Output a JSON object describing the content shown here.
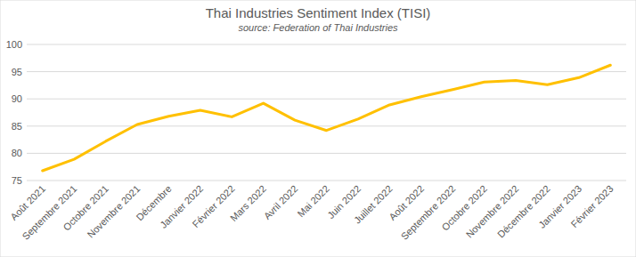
{
  "chart_data": {
    "type": "line",
    "title": "Thai Industries Sentiment Index (TISI)",
    "subtitle": "source: Federation of Thai Industries",
    "categories": [
      "Août 2021",
      "Septembre 2021",
      "Octobre 2021",
      "Novembre 2021",
      "Décembre",
      "Janvier 2022",
      "Février 2022",
      "Mars 2022",
      "Avril 2022",
      "Mai 2022",
      "Juin 2022",
      "Juillet 2022",
      "Août 2022",
      "Septembre 2022",
      "Octobre 2022",
      "Novembre 2022",
      "Décembre 2022",
      "Janvier 2023",
      "Février 2023"
    ],
    "values": [
      76.8,
      78.9,
      82.2,
      85.3,
      86.8,
      87.9,
      86.7,
      89.2,
      86.1,
      84.2,
      86.3,
      88.9,
      90.4,
      91.7,
      93.1,
      93.4,
      92.6,
      93.9,
      96.2
    ],
    "color": "#ffc000",
    "ylim": [
      75,
      100
    ],
    "yticks": [
      75,
      80,
      85,
      90,
      95,
      100
    ],
    "grid": true
  }
}
